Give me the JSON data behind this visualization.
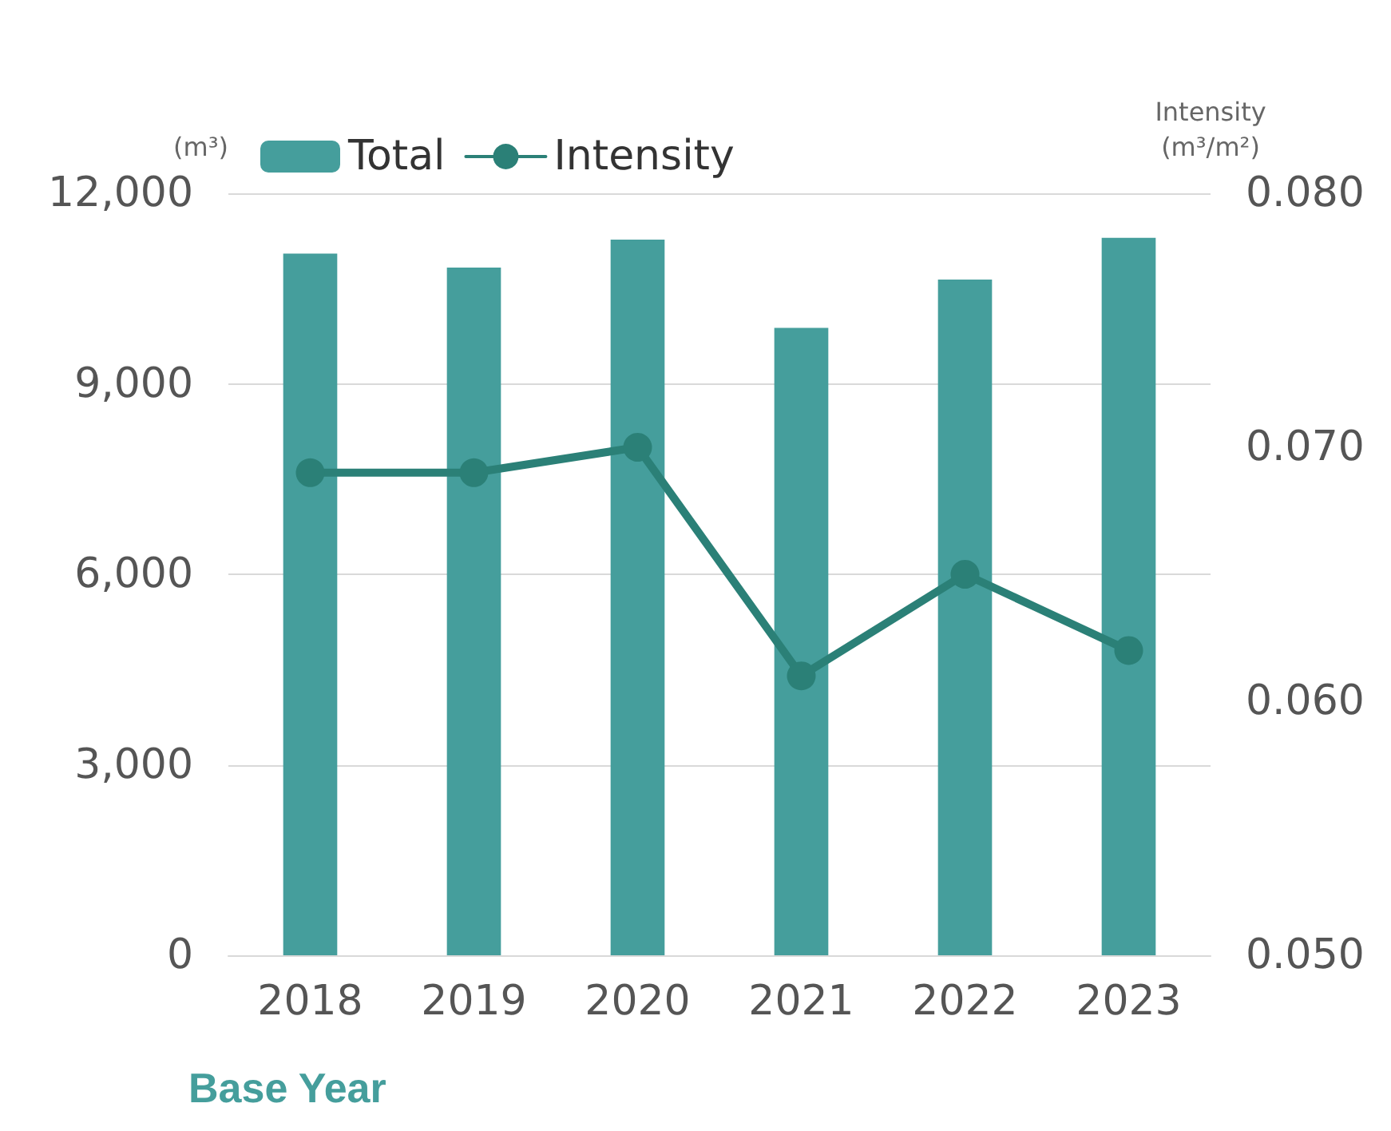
{
  "chart_data": {
    "type": "bar",
    "xlabel": "Base Year",
    "ylabel": "(m³)",
    "y2label": "Intensity\n(m³/m²)",
    "categories": [
      "2018",
      "2019",
      "2020",
      "2021",
      "2022",
      "2023"
    ],
    "series": [
      {
        "name": "Total",
        "color": "#459e9c",
        "values": [
          11050,
          10830,
          11270,
          9880,
          10640,
          11300
        ]
      },
      {
        "name": "Intensity",
        "type": "line",
        "axis": "y2",
        "color": "#2b8077",
        "values": [
          0.069,
          0.069,
          0.07,
          0.061,
          0.065,
          0.062
        ]
      }
    ],
    "ylim": [
      0,
      12000
    ],
    "yticks": [
      {
        "value": 0,
        "label": "0"
      },
      {
        "value": 3000,
        "label": "3,000"
      },
      {
        "value": 6000,
        "label": "6,000"
      },
      {
        "value": 9000,
        "label": "9,000"
      },
      {
        "value": 12000,
        "label": "12,000"
      }
    ],
    "y2lim": [
      0.05,
      0.08
    ],
    "y2ticks": [
      {
        "value": 0.05,
        "label": "0.050"
      },
      {
        "value": 0.06,
        "label": "0.060"
      },
      {
        "value": 0.07,
        "label": "0.070"
      },
      {
        "value": 0.08,
        "label": "0.080"
      }
    ],
    "grid": "y",
    "legend": "top left",
    "marker": "circle"
  }
}
